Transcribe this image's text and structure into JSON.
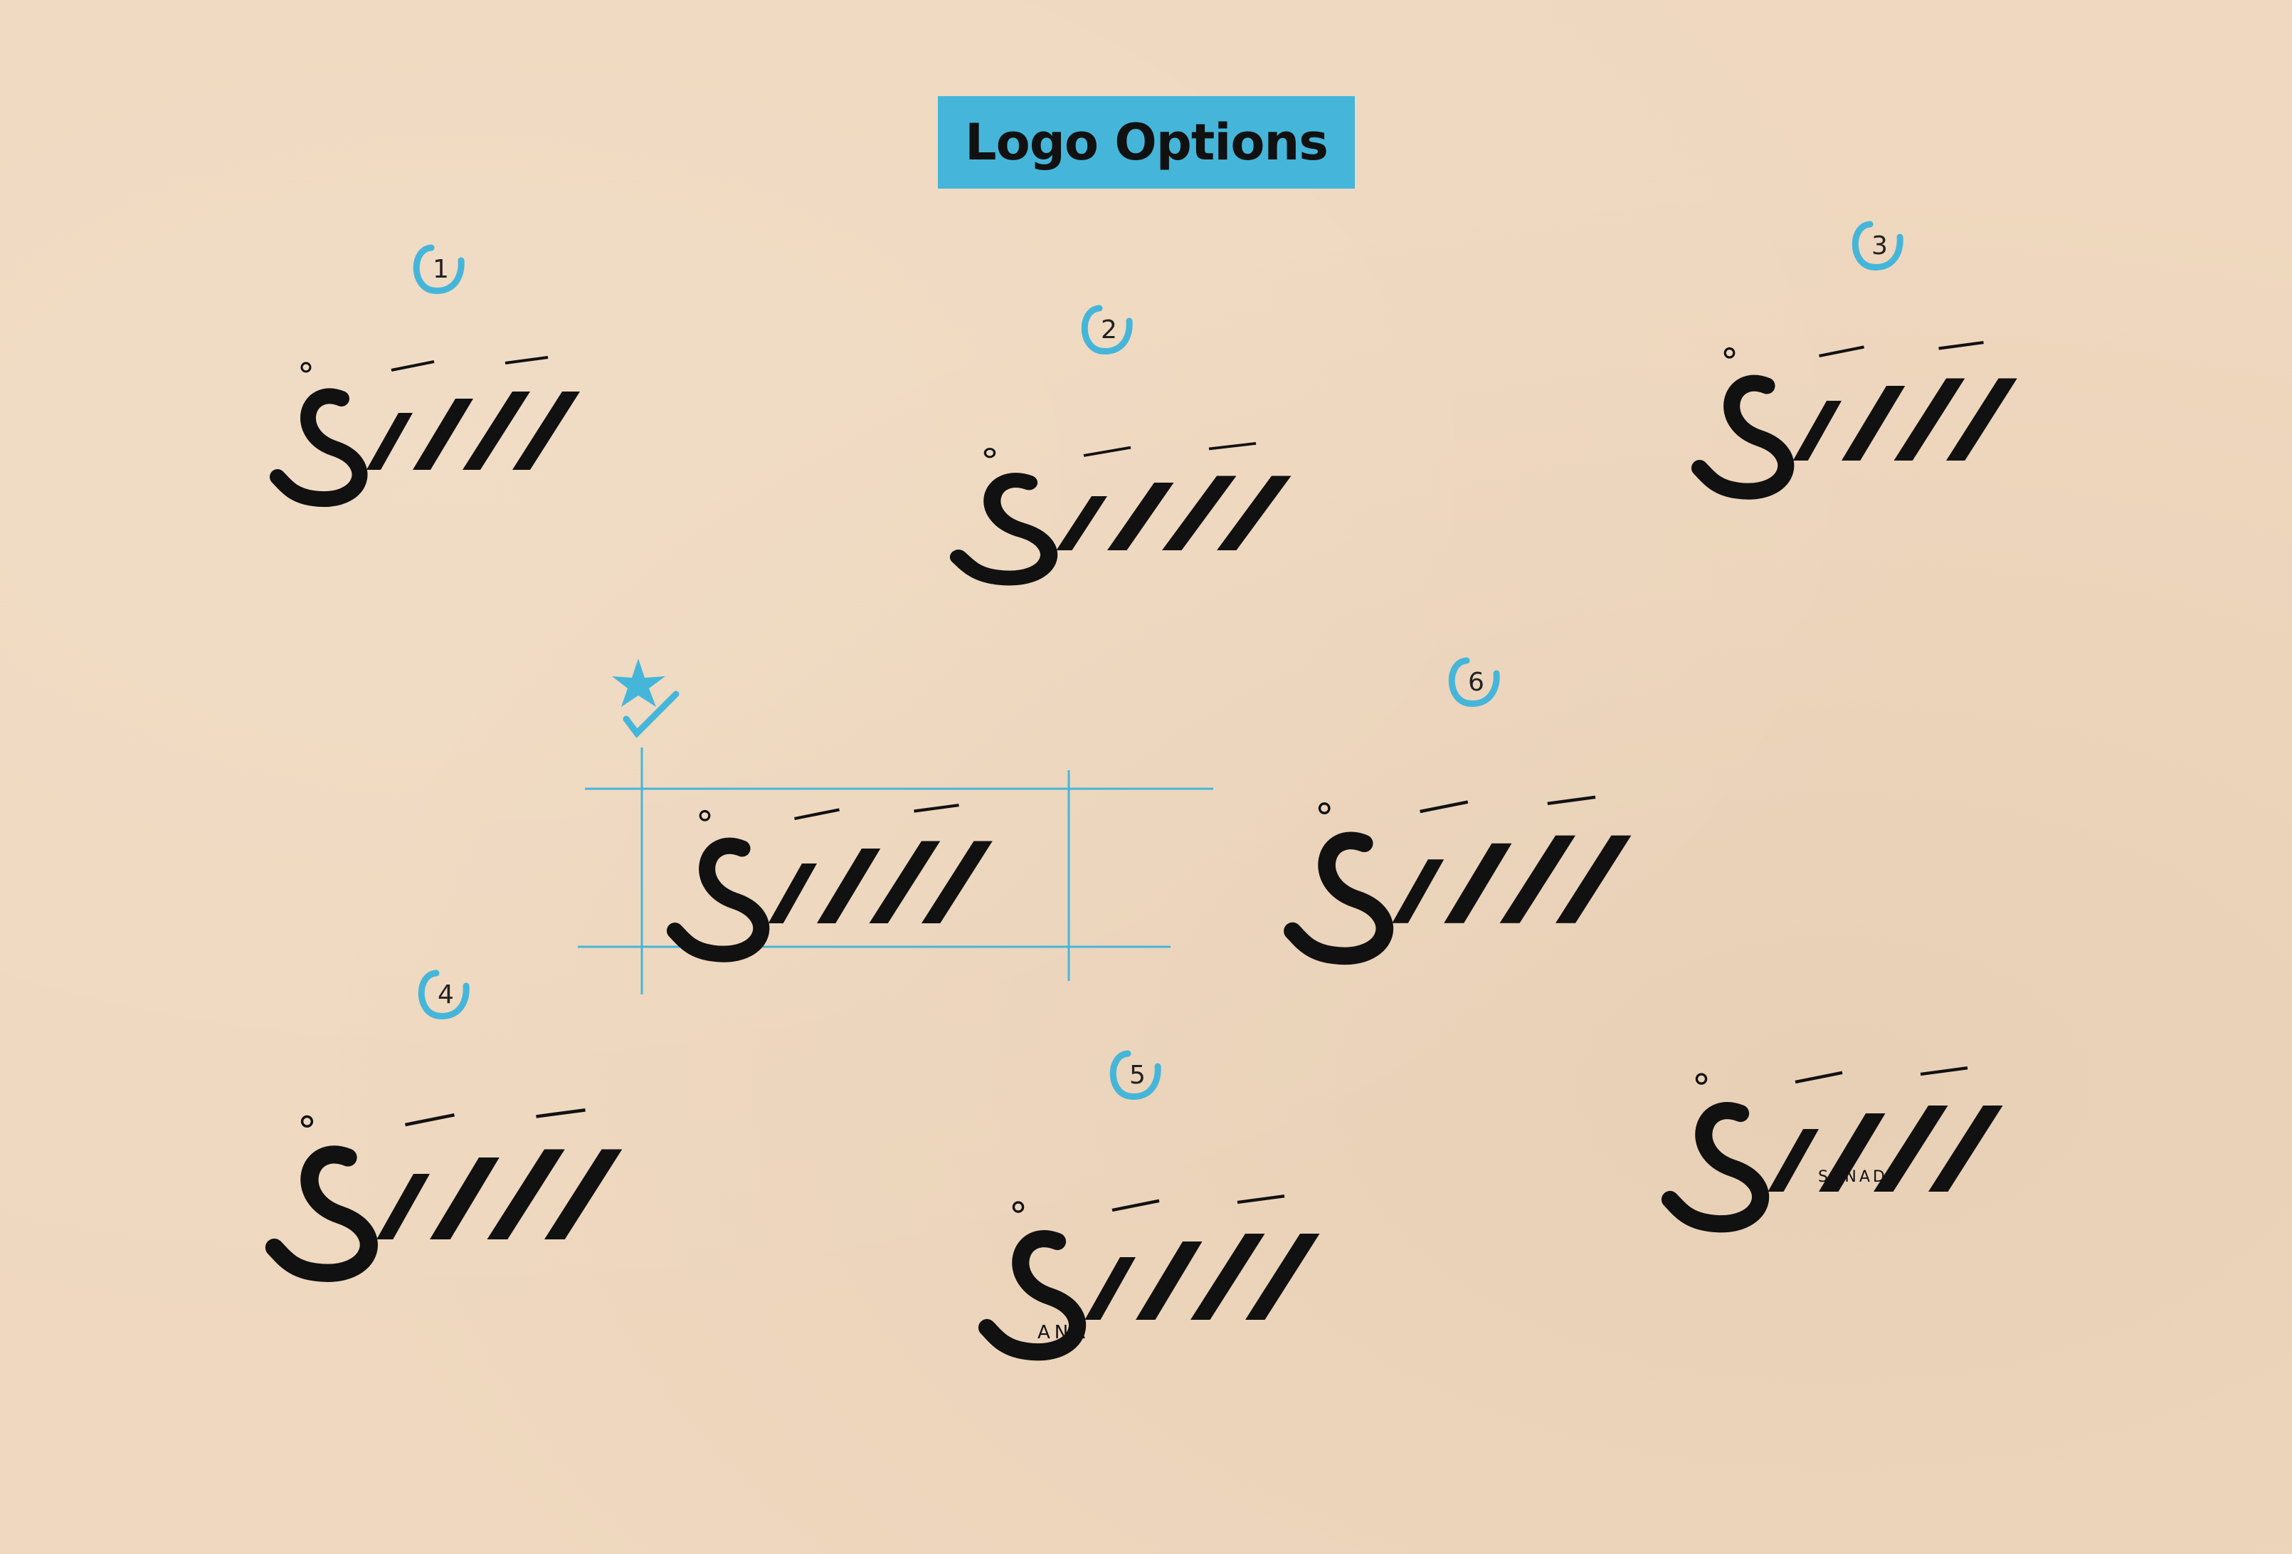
{
  "title": "Logo Options",
  "colors": {
    "background": "#efd8bf",
    "accent": "#45b6da",
    "ink": "#111111"
  },
  "options": [
    {
      "id": "opt1",
      "label": "1"
    },
    {
      "id": "opt2",
      "label": "2"
    },
    {
      "id": "opt3",
      "label": "3"
    },
    {
      "id": "opt4",
      "label": "4"
    },
    {
      "id": "opt5",
      "label": "5",
      "caption": "ANA"
    },
    {
      "id": "opt6",
      "label": "6"
    },
    {
      "id": "opt7",
      "caption": "SANAD"
    },
    {
      "id": "chosen",
      "mark": "star-check-icon"
    }
  ]
}
